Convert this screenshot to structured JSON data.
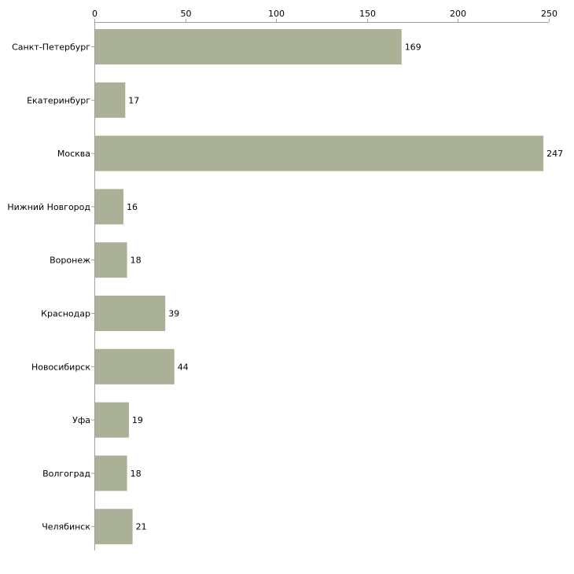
{
  "chart_data": {
    "type": "bar",
    "orientation": "horizontal",
    "categories": [
      "Санкт-Петербург",
      "Екатеринбург",
      "Москва",
      "Нижний Новгород",
      "Воронеж",
      "Краснодар",
      "Новосибирск",
      "Уфа",
      "Волгоград",
      "Челябинск"
    ],
    "values": [
      169,
      17,
      247,
      16,
      18,
      39,
      44,
      19,
      18,
      21
    ],
    "value_labels": [
      "169",
      "17",
      "247",
      "16",
      "18",
      "39",
      "44",
      "19",
      "18",
      "21"
    ],
    "xlim": [
      0,
      250
    ],
    "xticks": [
      0,
      50,
      100,
      150,
      200,
      250
    ],
    "xtick_labels": [
      "0",
      "50",
      "100",
      "150",
      "200",
      "250"
    ],
    "axis_position": "top",
    "grid": false,
    "title": "",
    "xlabel": "",
    "ylabel": ""
  },
  "colors": {
    "bar": "#abb196",
    "axis": "#a0a0a0",
    "text": "#000000"
  }
}
